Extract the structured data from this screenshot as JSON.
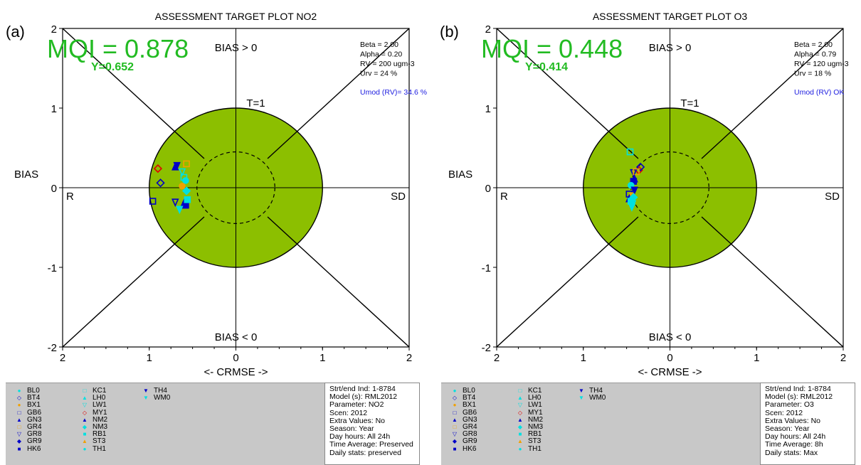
{
  "panels": [
    {
      "label": "(a)",
      "title": "ASSESSMENT TARGET PLOT   NO2",
      "mqi": "MQI  =  0.878",
      "y_value": "Y=0.652",
      "params": [
        "Beta = 2.00",
        "Alpha = 0.20",
        "RV = 200 ugm-3",
        "Urv = 24 %"
      ],
      "umod": "Umod (RV)= 34.6 %",
      "info": [
        "Strt/end Ind: 1-8784",
        "Model (s): RML2012",
        "Parameter: NO2",
        "Scen: 2012",
        "Extra Values: No",
        "Season: Year",
        "Day hours: All 24h",
        "Time Average: Preserved",
        "Daily stats: preserved"
      ]
    },
    {
      "label": "(b)",
      "title": "ASSESSMENT TARGET PLOT   O3",
      "mqi": "MQI  =  0.448",
      "y_value": "Y=0.414",
      "params": [
        "Beta = 2.00",
        "Alpha = 0.79",
        "RV = 120 ugm-3",
        "Urv = 18 %"
      ],
      "umod": "Umod (RV) OK",
      "info": [
        "Strt/end Ind: 1-8784",
        "Model (s): RML2012",
        "Parameter: O3",
        "Scen: 2012",
        "Extra Values: No",
        "Season: Year",
        "Day hours: All 24h",
        "Time Average: 8h",
        "Daily stats: Max"
      ]
    }
  ],
  "axis_text": {
    "bias_pos": "BIAS > 0",
    "bias_neg": "BIAS < 0",
    "t1": "T=1",
    "bias": "BIAS",
    "r": "R",
    "sd": "SD",
    "xlabel": "<- CRMSE ->"
  },
  "legend": {
    "col1": [
      {
        "name": "BL0",
        "sym": "●",
        "color": "#00e0e0"
      },
      {
        "name": "BT4",
        "sym": "◇",
        "color": "#0000c8"
      },
      {
        "name": "BX1",
        "sym": "●",
        "color": "#f0a000"
      },
      {
        "name": "GB6",
        "sym": "□",
        "color": "#0000c8"
      },
      {
        "name": "GN3",
        "sym": "▲",
        "color": "#0000c8"
      },
      {
        "name": "GR4",
        "sym": "□",
        "color": "#f0a000"
      },
      {
        "name": "GR8",
        "sym": "▽",
        "color": "#0000c8"
      },
      {
        "name": "GR9",
        "sym": "◆",
        "color": "#0000c8"
      },
      {
        "name": "HK6",
        "sym": "■",
        "color": "#0000c8"
      }
    ],
    "col2": [
      {
        "name": "KC1",
        "sym": "□",
        "color": "#00e0e0"
      },
      {
        "name": "LH0",
        "sym": "▲",
        "color": "#00e0e0"
      },
      {
        "name": "LW1",
        "sym": "▽",
        "color": "#00e0e0"
      },
      {
        "name": "MY1",
        "sym": "◇",
        "color": "#e00000"
      },
      {
        "name": "NM2",
        "sym": "▲",
        "color": "#0000c8"
      },
      {
        "name": "NM3",
        "sym": "◆",
        "color": "#00e0e0"
      },
      {
        "name": "RB1",
        "sym": "■",
        "color": "#00e0e0"
      },
      {
        "name": "ST3",
        "sym": "▲",
        "color": "#f0a000"
      },
      {
        "name": "TH1",
        "sym": "●",
        "color": "#00e0e0"
      }
    ],
    "col3": [
      {
        "name": "TH4",
        "sym": "▼",
        "color": "#0000c8"
      },
      {
        "name": "WM0",
        "sym": "▼",
        "color": "#00e0e0"
      }
    ]
  },
  "chart_data": [
    {
      "type": "scatter",
      "title": "ASSESSMENT TARGET PLOT   NO2",
      "xlabel": "<- CRMSE ->",
      "ylabel": "BIAS",
      "xlim": [
        -2,
        2
      ],
      "ylim": [
        -2,
        2
      ],
      "x_ticks": [
        "2",
        "1",
        "0",
        "1",
        "2"
      ],
      "y_ticks": [
        "2",
        "1",
        "0",
        "-1",
        "-2"
      ],
      "target_radius": 1.0,
      "inner_radius": 0.45,
      "series": [
        {
          "name": "MY1",
          "marker": "diamond-open",
          "color": "#e00000",
          "x": -0.9,
          "y": 0.24
        },
        {
          "name": "BT4",
          "marker": "diamond-open",
          "color": "#0000c8",
          "x": -0.87,
          "y": 0.06
        },
        {
          "name": "GB6",
          "marker": "square-open",
          "color": "#0000c8",
          "x": -0.96,
          "y": -0.17
        },
        {
          "name": "GR4",
          "marker": "square-open",
          "color": "#f0a000",
          "x": -0.57,
          "y": 0.3
        },
        {
          "name": "TH4",
          "marker": "triangle-down",
          "color": "#0000c8",
          "x": -0.68,
          "y": 0.28
        },
        {
          "name": "GN3",
          "marker": "triangle-up",
          "color": "#0000c8",
          "x": -0.7,
          "y": 0.26
        },
        {
          "name": "LW1",
          "marker": "triangle-down-open",
          "color": "#00e0e0",
          "x": -0.62,
          "y": 0.2
        },
        {
          "name": "KC1",
          "marker": "square-open",
          "color": "#00e0e0",
          "x": -0.6,
          "y": 0.13
        },
        {
          "name": "BL0",
          "marker": "circle",
          "color": "#00e0e0",
          "x": -0.58,
          "y": 0.09
        },
        {
          "name": "BX1",
          "marker": "circle",
          "color": "#f0a000",
          "x": -0.62,
          "y": 0.02
        },
        {
          "name": "NM3",
          "marker": "diamond",
          "color": "#00e0e0",
          "x": -0.57,
          "y": -0.04
        },
        {
          "name": "GR8",
          "marker": "triangle-down-open",
          "color": "#0000c8",
          "x": -0.7,
          "y": -0.18
        },
        {
          "name": "NM2",
          "marker": "triangle-up",
          "color": "#0000c8",
          "x": -0.6,
          "y": -0.2
        },
        {
          "name": "HK6",
          "marker": "square",
          "color": "#0000c8",
          "x": -0.58,
          "y": -0.22
        },
        {
          "name": "WM0",
          "marker": "triangle-down",
          "color": "#00e0e0",
          "x": -0.65,
          "y": -0.27
        },
        {
          "name": "RB1",
          "marker": "square",
          "color": "#00e0e0",
          "x": -0.56,
          "y": -0.15
        }
      ]
    },
    {
      "type": "scatter",
      "title": "ASSESSMENT TARGET PLOT   O3",
      "xlabel": "<- CRMSE ->",
      "ylabel": "BIAS",
      "xlim": [
        -2,
        2
      ],
      "ylim": [
        -2,
        2
      ],
      "x_ticks": [
        "2",
        "1",
        "0",
        "1",
        "2"
      ],
      "y_ticks": [
        "2",
        "1",
        "0",
        "-1",
        "-2"
      ],
      "target_radius": 1.0,
      "inner_radius": 0.45,
      "series": [
        {
          "name": "KC1",
          "marker": "square-open",
          "color": "#00e0e0",
          "x": -0.46,
          "y": 0.45
        },
        {
          "name": "MY1",
          "marker": "diamond-open",
          "color": "#e00000",
          "x": -0.36,
          "y": 0.22
        },
        {
          "name": "BT4",
          "marker": "diamond-open",
          "color": "#0000c8",
          "x": -0.34,
          "y": 0.26
        },
        {
          "name": "GR8",
          "marker": "triangle-down-open",
          "color": "#0000c8",
          "x": -0.42,
          "y": 0.19
        },
        {
          "name": "GR4",
          "marker": "square-open",
          "color": "#f0a000",
          "x": -0.39,
          "y": 0.2
        },
        {
          "name": "GN3",
          "marker": "triangle-up",
          "color": "#0000c8",
          "x": -0.41,
          "y": 0.11
        },
        {
          "name": "HK6",
          "marker": "square",
          "color": "#0000c8",
          "x": -0.42,
          "y": 0.08
        },
        {
          "name": "BL0",
          "marker": "circle",
          "color": "#00e0e0",
          "x": -0.45,
          "y": 0.03
        },
        {
          "name": "TH4",
          "marker": "triangle-down",
          "color": "#0000c8",
          "x": -0.41,
          "y": -0.03
        },
        {
          "name": "GB6",
          "marker": "square-open",
          "color": "#0000c8",
          "x": -0.47,
          "y": -0.08
        },
        {
          "name": "BX1",
          "marker": "circle",
          "color": "#f0a000",
          "x": -0.44,
          "y": -0.1
        },
        {
          "name": "NM2",
          "marker": "triangle-up",
          "color": "#0000c8",
          "x": -0.47,
          "y": -0.14
        },
        {
          "name": "RB1",
          "marker": "square",
          "color": "#00e0e0",
          "x": -0.45,
          "y": -0.17
        },
        {
          "name": "LW1",
          "marker": "triangle-down-open",
          "color": "#00e0e0",
          "x": -0.43,
          "y": -0.2
        },
        {
          "name": "WM0",
          "marker": "triangle-down",
          "color": "#00e0e0",
          "x": -0.44,
          "y": -0.24
        },
        {
          "name": "NM3",
          "marker": "diamond",
          "color": "#00e0e0",
          "x": -0.42,
          "y": -0.12
        }
      ]
    }
  ],
  "colors": {
    "target_fill": "#8cbf00",
    "mqi_green": "#22bb22",
    "umod_blue": "#2020e0",
    "panel_bg": "#c8c8c8"
  }
}
